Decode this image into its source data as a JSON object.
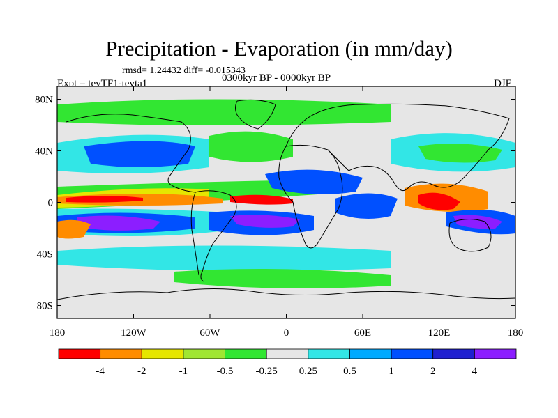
{
  "header": {
    "title": "Precipitation - Evaporation (in mm/day)",
    "stats": "rmsd= 1.24432 diff= -0.015343",
    "experiment": "Expt = tevTF1-tevta1",
    "period": "0300kyr BP - 0000kyr BP",
    "season": "DJF"
  },
  "map": {
    "projection": "cylindrical equidistant",
    "lon_range": [
      -180,
      180
    ],
    "lat_range": [
      -90,
      90
    ],
    "background_color": "#e6e6e6",
    "y_ticks": [
      {
        "value": 80,
        "label": "80N"
      },
      {
        "value": 40,
        "label": "40N"
      },
      {
        "value": 0,
        "label": "0"
      },
      {
        "value": -40,
        "label": "40S"
      },
      {
        "value": -80,
        "label": "80S"
      }
    ],
    "x_ticks": [
      {
        "value": -180,
        "label": "180"
      },
      {
        "value": -120,
        "label": "120W"
      },
      {
        "value": -60,
        "label": "60W"
      },
      {
        "value": 0,
        "label": "0"
      },
      {
        "value": 60,
        "label": "60E"
      },
      {
        "value": 120,
        "label": "120E"
      },
      {
        "value": 180,
        "label": "180"
      }
    ]
  },
  "colorbar": {
    "colors": [
      "#ff0000",
      "#ff8c00",
      "#e6e600",
      "#a0e632",
      "#32e632",
      "#e6e6e6",
      "#32e6e6",
      "#00aaff",
      "#0050ff",
      "#2020d0",
      "#8c1eff"
    ],
    "labels": [
      "-4",
      "-2",
      "-1",
      "-0.5",
      "-0.25",
      "0.25",
      "0.5",
      "1",
      "2",
      "4"
    ]
  }
}
